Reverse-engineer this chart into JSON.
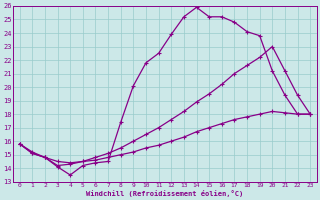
{
  "xlabel": "Windchill (Refroidissement éolien,°C)",
  "bg_color": "#cce8e8",
  "line_color": "#880088",
  "grid_color": "#99cccc",
  "xlim": [
    -0.5,
    23.5
  ],
  "ylim": [
    13,
    26
  ],
  "yticks": [
    13,
    14,
    15,
    16,
    17,
    18,
    19,
    20,
    21,
    22,
    23,
    24,
    25,
    26
  ],
  "xticks": [
    0,
    1,
    2,
    3,
    4,
    5,
    6,
    7,
    8,
    9,
    10,
    11,
    12,
    13,
    14,
    15,
    16,
    17,
    18,
    19,
    20,
    21,
    22,
    23
  ],
  "series1_x": [
    0,
    1,
    2,
    3,
    4,
    5,
    6,
    7,
    8,
    9,
    10,
    11,
    12,
    13,
    14,
    15,
    16,
    17,
    18,
    19,
    20,
    21,
    22,
    23
  ],
  "series1_y": [
    15.8,
    15.1,
    14.8,
    14.1,
    13.5,
    14.2,
    14.4,
    14.5,
    17.4,
    20.1,
    21.8,
    22.5,
    23.9,
    25.2,
    25.9,
    25.2,
    25.2,
    24.8,
    24.1,
    23.8,
    21.2,
    19.4,
    18.0,
    18.0
  ],
  "series2_x": [
    0,
    1,
    2,
    3,
    4,
    5,
    6,
    7,
    8,
    9,
    10,
    11,
    12,
    13,
    14,
    15,
    16,
    17,
    18,
    19,
    20,
    21,
    22,
    23
  ],
  "series2_y": [
    15.8,
    15.1,
    14.8,
    14.2,
    14.3,
    14.5,
    14.8,
    15.1,
    15.5,
    16.0,
    16.5,
    17.0,
    17.6,
    18.2,
    18.9,
    19.5,
    20.2,
    21.0,
    21.6,
    22.2,
    23.0,
    21.2,
    19.4,
    18.0
  ],
  "series3_x": [
    0,
    1,
    2,
    3,
    4,
    5,
    6,
    7,
    8,
    9,
    10,
    11,
    12,
    13,
    14,
    15,
    16,
    17,
    18,
    19,
    20,
    21,
    22,
    23
  ],
  "series3_y": [
    15.8,
    15.2,
    14.8,
    14.5,
    14.4,
    14.5,
    14.6,
    14.8,
    15.0,
    15.2,
    15.5,
    15.7,
    16.0,
    16.3,
    16.7,
    17.0,
    17.3,
    17.6,
    17.8,
    18.0,
    18.2,
    18.1,
    18.0,
    18.0
  ]
}
